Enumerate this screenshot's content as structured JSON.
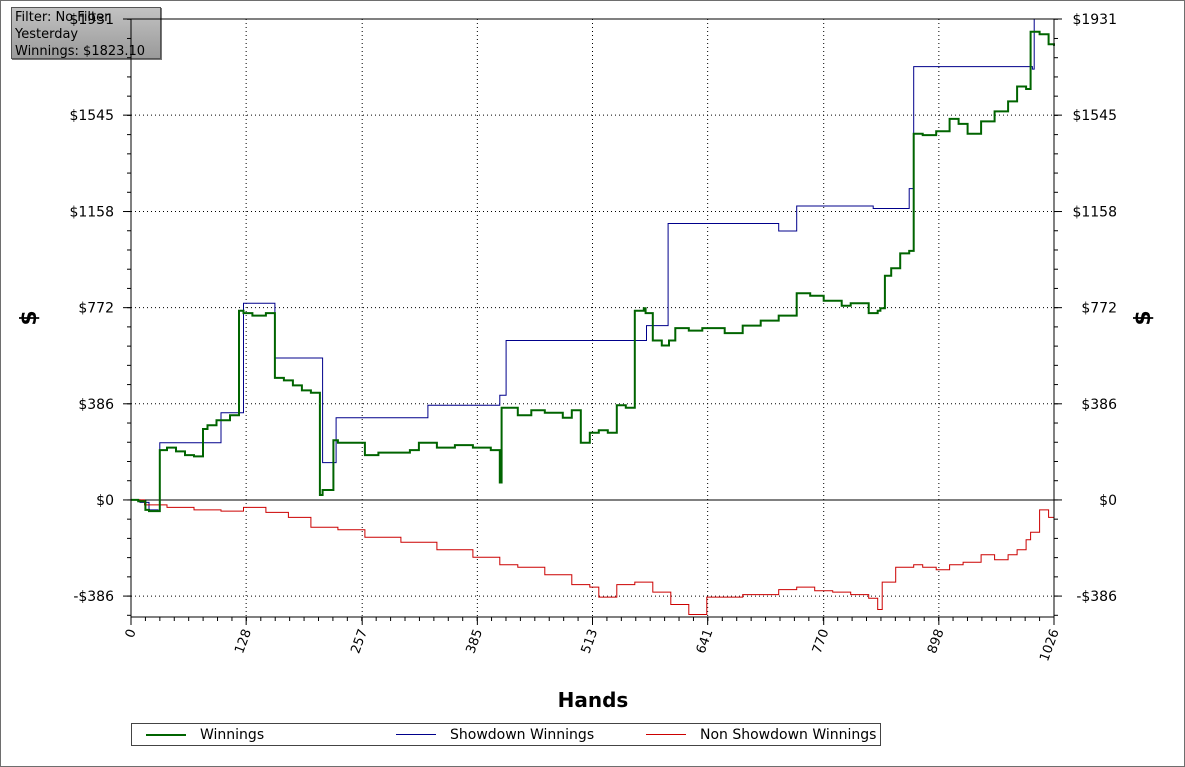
{
  "info_box": {
    "filter": "Filter: No Filter",
    "period": "Yesterday",
    "winnings": "Winnings: $1823.10"
  },
  "legend": {
    "winnings": "Winnings",
    "showdown": "Showdown Winnings",
    "non_showdown": "Non Showdown Winnings"
  },
  "colors": {
    "winnings": "#006400",
    "showdown": "#00008b",
    "non_showdown": "#cc0000"
  },
  "chart_data": {
    "type": "line",
    "xlabel": "Hands",
    "ylabel": "$",
    "xlim": [
      0,
      1026
    ],
    "ylim": [
      -470,
      1931
    ],
    "x_ticks": [
      0,
      128,
      257,
      385,
      513,
      641,
      770,
      898,
      1026
    ],
    "y_ticks": [
      -386,
      0,
      386,
      772,
      1158,
      1545,
      1931
    ],
    "y_tick_labels": [
      "-$386",
      "$0",
      "$386",
      "$772",
      "$1158",
      "$1545",
      "$1931"
    ],
    "grid": true,
    "legend_position": "bottom",
    "series": [
      {
        "name": "Winnings",
        "step": true,
        "x": [
          0,
          8,
          16,
          20,
          30,
          32,
          40,
          50,
          60,
          70,
          80,
          85,
          95,
          110,
          120,
          125,
          135,
          150,
          160,
          170,
          180,
          190,
          200,
          210,
          213,
          225,
          230,
          260,
          275,
          310,
          320,
          340,
          360,
          380,
          400,
          410,
          412,
          430,
          445,
          460,
          480,
          490,
          500,
          510,
          520,
          530,
          540,
          550,
          560,
          570,
          572,
          580,
          590,
          598,
          605,
          620,
          635,
          660,
          680,
          700,
          720,
          740,
          755,
          770,
          790,
          800,
          820,
          830,
          833,
          838,
          845,
          855,
          865,
          870,
          880,
          895,
          910,
          920,
          930,
          945,
          960,
          975,
          985,
          995,
          1000,
          1010,
          1020,
          1026
        ],
        "values": [
          0,
          -5,
          -40,
          -45,
          -45,
          200,
          210,
          195,
          180,
          175,
          285,
          300,
          320,
          340,
          760,
          750,
          740,
          750,
          490,
          480,
          460,
          440,
          430,
          20,
          40,
          240,
          230,
          180,
          190,
          200,
          230,
          210,
          220,
          210,
          200,
          70,
          370,
          340,
          360,
          350,
          330,
          360,
          230,
          270,
          280,
          270,
          380,
          370,
          760,
          770,
          750,
          640,
          620,
          640,
          690,
          680,
          690,
          670,
          700,
          720,
          740,
          830,
          820,
          800,
          780,
          790,
          750,
          760,
          770,
          900,
          930,
          990,
          1000,
          1470,
          1465,
          1480,
          1530,
          1510,
          1470,
          1520,
          1560,
          1600,
          1660,
          1650,
          1880,
          1870,
          1830,
          1823
        ]
      },
      {
        "name": "Showdown Winnings",
        "step": true,
        "x": [
          0,
          10,
          20,
          30,
          32,
          85,
          100,
          115,
          125,
          160,
          210,
          213,
          228,
          300,
          330,
          410,
          417,
          560,
          573,
          597,
          720,
          740,
          825,
          865,
          870,
          1002,
          1004,
          1026
        ],
        "values": [
          0,
          -10,
          -40,
          -45,
          230,
          230,
          350,
          350,
          790,
          570,
          570,
          150,
          330,
          330,
          380,
          420,
          640,
          640,
          700,
          1110,
          1080,
          1180,
          1170,
          1250,
          1740,
          1730,
          1931,
          1931
        ]
      },
      {
        "name": "Non Showdown Winnings",
        "step": true,
        "x": [
          0,
          15,
          40,
          70,
          100,
          125,
          150,
          175,
          200,
          230,
          260,
          300,
          340,
          380,
          410,
          430,
          460,
          490,
          510,
          520,
          540,
          560,
          580,
          600,
          620,
          640,
          660,
          680,
          700,
          720,
          740,
          760,
          780,
          800,
          820,
          830,
          835,
          850,
          870,
          880,
          895,
          910,
          925,
          945,
          960,
          975,
          985,
          995,
          1000,
          1010,
          1020,
          1026
        ],
        "values": [
          0,
          -20,
          -30,
          -40,
          -45,
          -30,
          -50,
          -70,
          -110,
          -120,
          -150,
          -170,
          -200,
          -230,
          -260,
          -270,
          -300,
          -340,
          -350,
          -390,
          -340,
          -330,
          -370,
          -420,
          -460,
          -390,
          -390,
          -380,
          -380,
          -360,
          -350,
          -365,
          -370,
          -380,
          -395,
          -440,
          -330,
          -270,
          -260,
          -270,
          -280,
          -260,
          -250,
          -220,
          -240,
          -220,
          -200,
          -160,
          -130,
          -40,
          -70,
          -80
        ]
      }
    ]
  }
}
